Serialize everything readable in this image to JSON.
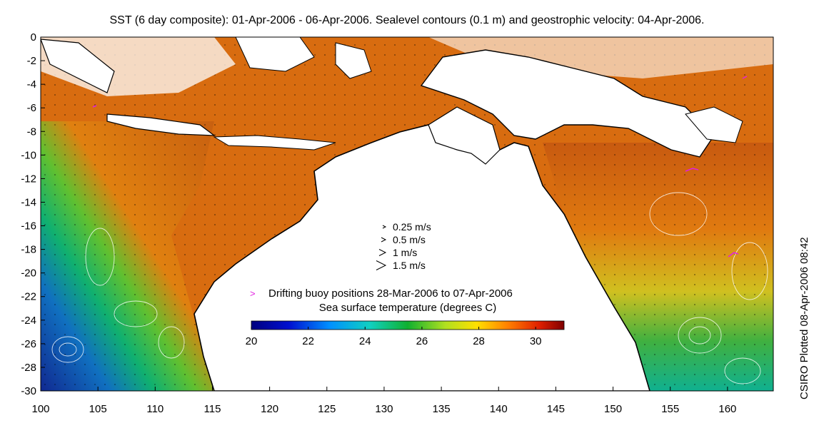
{
  "figure": {
    "title": "SST (6 day composite): 01-Apr-2006 - 06-Apr-2006. Sealevel contours (0.1 m) and geostrophic velocity: 04-Apr-2006.",
    "side_label": "CSIRO Plotted 08-Apr-2006 08:42"
  },
  "map": {
    "x_ticks": [
      "100",
      "105",
      "110",
      "115",
      "120",
      "125",
      "130",
      "135",
      "140",
      "145",
      "150",
      "155",
      "160"
    ],
    "y_ticks": [
      "0",
      "-2",
      "-4",
      "-6",
      "-8",
      "-10",
      "-12",
      "-14",
      "-16",
      "-18",
      "-20",
      "-22",
      "-24",
      "-26",
      "-28",
      "-30"
    ],
    "lon_range": [
      100,
      164
    ],
    "lat_range": [
      -30,
      0
    ]
  },
  "legend": {
    "velocity_scale": [
      "0.25 m/s",
      "0.5 m/s",
      "1 m/s",
      "1.5 m/s"
    ],
    "buoy_label": "Drifting buoy positions 28-Mar-2006 to 07-Apr-2006",
    "buoy_color": "#e020e0",
    "colorbar_title": "Sea surface temperature (degrees C)",
    "colorbar_ticks": [
      "20",
      "22",
      "24",
      "26",
      "28",
      "30"
    ],
    "colorbar_range": [
      20,
      31
    ]
  },
  "colors": {
    "sst_cold": "#00007f",
    "sst_mid": "#10b030",
    "sst_warm": "#e07a10",
    "sst_hot": "#7f0000",
    "land": "#ffffff",
    "coast": "#000000"
  }
}
